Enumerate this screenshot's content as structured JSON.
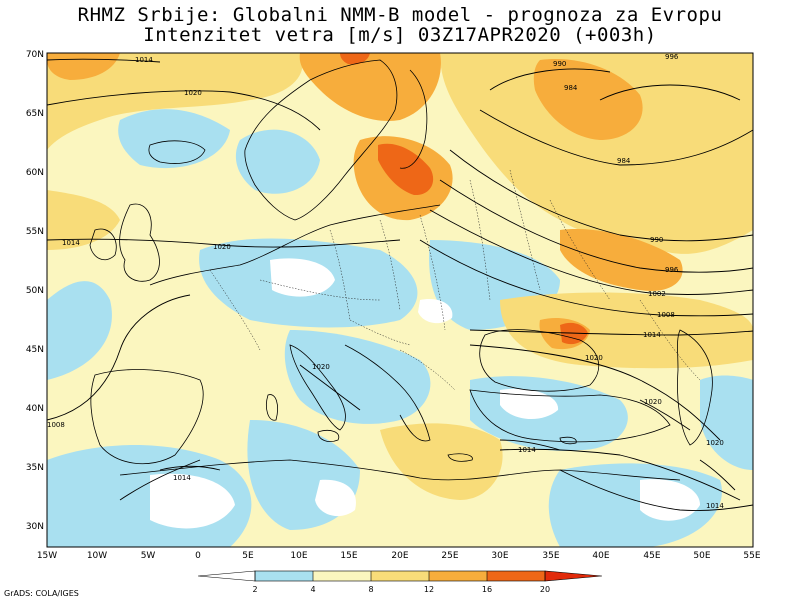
{
  "title": {
    "line1": "RHMZ Srbije: Globalni NMM-B model - prognoza za Evropu",
    "line2": "Intenzitet vetra [m/s] 03Z17APR2020 (+003h)"
  },
  "axes": {
    "lat_labels": [
      "70N",
      "65N",
      "60N",
      "55N",
      "50N",
      "45N",
      "40N",
      "35N",
      "30N"
    ],
    "lon_labels": [
      "15W",
      "10W",
      "5W",
      "0",
      "5E",
      "10E",
      "15E",
      "20E",
      "25E",
      "30E",
      "35E",
      "40E",
      "45E",
      "50E",
      "55E"
    ]
  },
  "colorbar": {
    "colors": [
      "#ffffff",
      "#a9e0f0",
      "#fbf6bf",
      "#f8dc79",
      "#f7ad3c",
      "#ee6717",
      "#e12a0a",
      "#c0120b"
    ],
    "levels": [
      "2",
      "4",
      "8",
      "12",
      "16",
      "20"
    ]
  },
  "isobars": [
    "1014",
    "1020",
    "1020",
    "1014",
    "1020",
    "1008",
    "1014",
    "1014",
    "990",
    "984",
    "984",
    "990",
    "996",
    "1002",
    "1008",
    "1014",
    "1020",
    "1020",
    "1020",
    "1014",
    "996"
  ],
  "credit": "GrADS: COLA/IGES"
}
